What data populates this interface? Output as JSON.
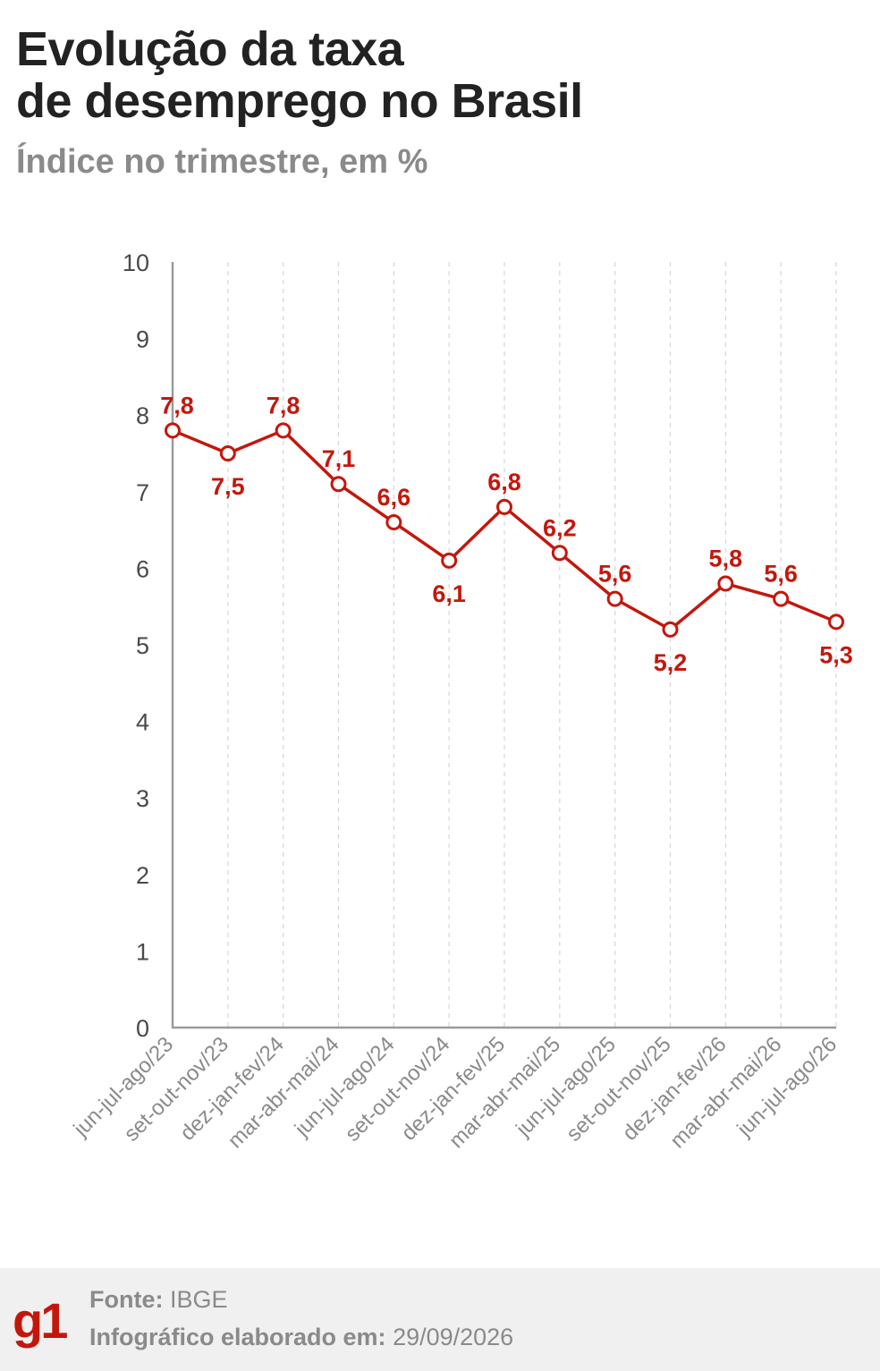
{
  "header": {
    "title_line1": "Evolução da taxa",
    "title_line2": "de desemprego no Brasil",
    "subtitle": "Índice no trimestre, em %"
  },
  "colors": {
    "series": "#c4170c",
    "axis": "#9a9a9a",
    "grid": "#d6d6d6",
    "tick_text": "#4a4a4a"
  },
  "chart_data": {
    "type": "line",
    "title": "Evolução da taxa de desemprego no Brasil",
    "subtitle": "Índice no trimestre, em %",
    "xlabel": "",
    "ylabel": "",
    "ylim": [
      0,
      10
    ],
    "yticks": [
      0,
      1,
      2,
      3,
      4,
      5,
      6,
      7,
      8,
      9,
      10
    ],
    "grid": "vertical dashed",
    "categories": [
      "jun-jul-ago/23",
      "set-out-nov/23",
      "dez-jan-fev/24",
      "mar-abr-mai/24",
      "jun-jul-ago/24",
      "set-out-nov/24",
      "dez-jan-fev/25",
      "mar-abr-mai/25",
      "jun-jul-ago/25",
      "set-out-nov/25",
      "dez-jan-fev/26",
      "mar-abr-mai/26",
      "jun-jul-ago/26"
    ],
    "series": [
      {
        "values": [
          7.8,
          7.5,
          7.8,
          7.1,
          6.6,
          6.1,
          6.8,
          6.2,
          5.6,
          5.2,
          5.8,
          5.6,
          5.3
        ],
        "labels": [
          "7,8",
          "7,5",
          "7,8",
          "7,1",
          "6,6",
          "6,1",
          "6,8",
          "6,2",
          "5,6",
          "5,2",
          "5,8",
          "5,6",
          "5,3"
        ],
        "label_position": [
          "above",
          "below",
          "above",
          "above",
          "above",
          "below",
          "above",
          "above",
          "above",
          "below",
          "above",
          "above",
          "below"
        ]
      }
    ]
  },
  "footer": {
    "logo": "g1",
    "source_label": "Fonte:",
    "source_value": "IBGE",
    "made_label": "Infográfico elaborado em:",
    "made_value": "29/09/2026"
  }
}
